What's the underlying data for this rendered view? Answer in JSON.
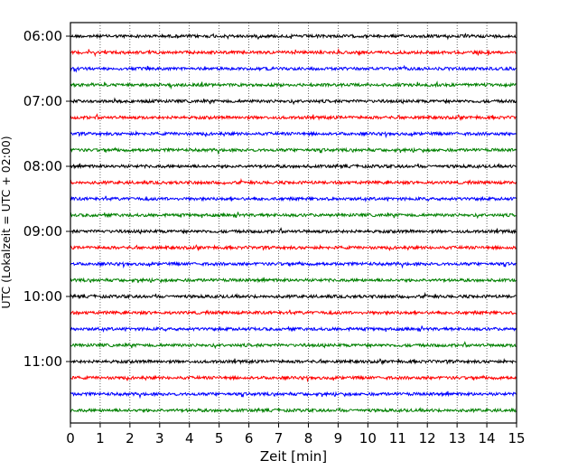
{
  "chart_data": {
    "type": "line",
    "title": "",
    "xlabel": "Zeit  [min]",
    "ylabel": "UTC (Lokalzeit = UTC + 02:00)",
    "xlim": [
      0,
      15
    ],
    "xticks": [
      "0",
      "1",
      "2",
      "3",
      "4",
      "5",
      "6",
      "7",
      "8",
      "9",
      "10",
      "11",
      "12",
      "13",
      "14",
      "15"
    ],
    "yticks": [
      "06:00",
      "07:00",
      "08:00",
      "09:00",
      "10:00",
      "11:00"
    ],
    "grid": "vertical dotted at each minute",
    "trace_interval_min": 15,
    "trace_start": "06:00",
    "trace_count": 24,
    "trace_colors": [
      "#000000",
      "#ff0000",
      "#0000ff",
      "#008000"
    ],
    "series_description_amplitude": "low-amplitude seismic noise, roughly uniform"
  }
}
